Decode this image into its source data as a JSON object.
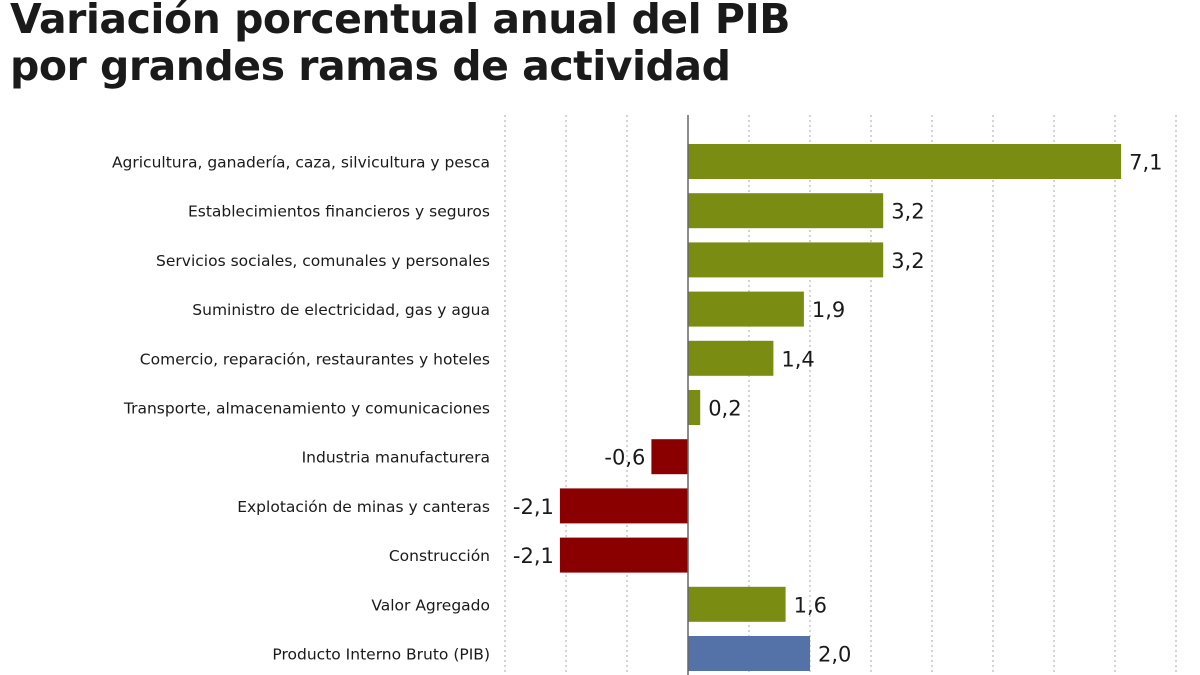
{
  "title_line1": "Variación porcentual anual del PIB",
  "title_line2": "por grandes ramas de actividad",
  "chart_data": {
    "type": "bar",
    "orientation": "horizontal",
    "title": "Variación porcentual anual del PIB por grandes ramas de actividad",
    "categories": [
      "Agricultura, ganadería, caza, silvicultura y pesca",
      "Establecimientos financieros y seguros",
      "Servicios sociales, comunales y personales",
      "Suministro de electricidad, gas y agua",
      "Comercio, reparación, restaurantes y hoteles",
      "Transporte, almacenamiento y comunicaciones",
      "Industria manufacturera",
      "Explotación de minas y canteras",
      "Construcción",
      "Valor Agregado",
      "Producto Interno Bruto (PIB)"
    ],
    "values": [
      7.1,
      3.2,
      3.2,
      1.9,
      1.4,
      0.2,
      -0.6,
      -2.1,
      -2.1,
      1.6,
      2.0
    ],
    "data_labels": [
      "7,1",
      "3,2",
      "3,2",
      "1,9",
      "1,4",
      "0,2",
      "-0,6",
      "-2,1",
      "-2,1",
      "1,6",
      "2,0"
    ],
    "xlim": [
      -3,
      8
    ],
    "grid": true,
    "colors": {
      "positive": "#7b8c12",
      "negative": "#8a0000",
      "total": "#5572a8"
    }
  }
}
